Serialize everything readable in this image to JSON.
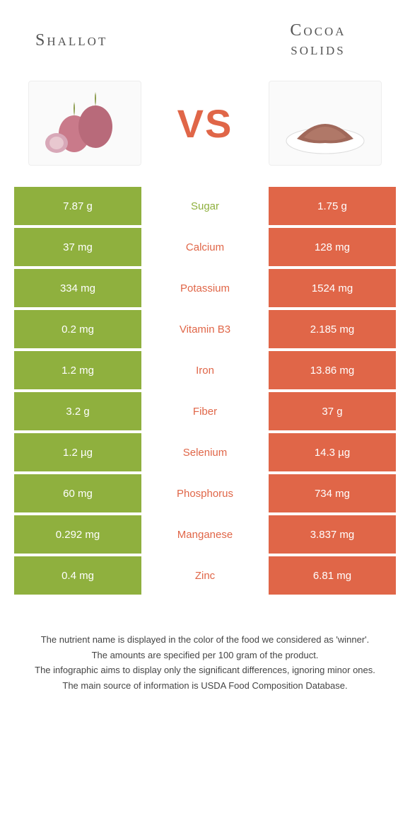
{
  "header": {
    "left_title": "Shallot",
    "right_title": "Cocoa solids",
    "vs_text": "VS"
  },
  "colors": {
    "left_bg": "#8fb03e",
    "right_bg": "#e06648",
    "left_text": "#8fb03e",
    "right_text": "#e06648",
    "row_gap": "#ffffff"
  },
  "rows": [
    {
      "left": "7.87 g",
      "label": "Sugar",
      "right": "1.75 g",
      "winner": "left"
    },
    {
      "left": "37 mg",
      "label": "Calcium",
      "right": "128 mg",
      "winner": "right"
    },
    {
      "left": "334 mg",
      "label": "Potassium",
      "right": "1524 mg",
      "winner": "right"
    },
    {
      "left": "0.2 mg",
      "label": "Vitamin B3",
      "right": "2.185 mg",
      "winner": "right"
    },
    {
      "left": "1.2 mg",
      "label": "Iron",
      "right": "13.86 mg",
      "winner": "right"
    },
    {
      "left": "3.2 g",
      "label": "Fiber",
      "right": "37 g",
      "winner": "right"
    },
    {
      "left": "1.2 µg",
      "label": "Selenium",
      "right": "14.3 µg",
      "winner": "right"
    },
    {
      "left": "60 mg",
      "label": "Phosphorus",
      "right": "734 mg",
      "winner": "right"
    },
    {
      "left": "0.292 mg",
      "label": "Manganese",
      "right": "3.837 mg",
      "winner": "right"
    },
    {
      "left": "0.4 mg",
      "label": "Zinc",
      "right": "6.81 mg",
      "winner": "right"
    }
  ],
  "footer": {
    "line1": "The nutrient name is displayed in the color of the food we considered as 'winner'.",
    "line2": "The amounts are specified per 100 gram of the product.",
    "line3": "The infographic aims to display only the significant differences, ignoring minor ones.",
    "line4": "The main source of information is USDA Food Composition Database."
  }
}
